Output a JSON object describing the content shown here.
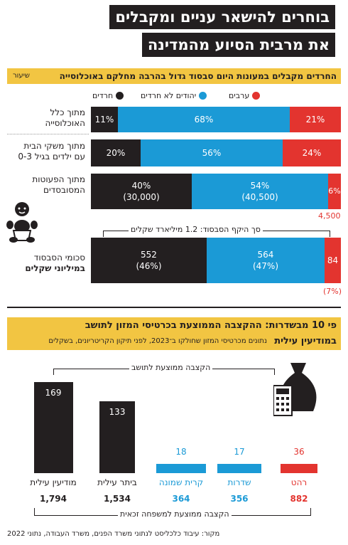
{
  "title": {
    "line1": "בוחרים להישאר עניים ומקבלים",
    "line2": "את מרבית הסיוע מהמדינה"
  },
  "section1": {
    "title": "החרדים מקבלים במעונות היום סבסוד גדול בהרבה מחלקם באוכלוסייה",
    "unit": "שיעור",
    "legend": [
      {
        "label": "ערבים",
        "color": "#e3342f"
      },
      {
        "label": "יהודים לא חרדים",
        "color": "#1b9ad6"
      },
      {
        "label": "חרדים",
        "color": "#231f20"
      }
    ],
    "rows": [
      {
        "label": "מתוך כלל\nהאוכלוסייה",
        "haredi": "11%",
        "jewish": "68%",
        "arab": "21%"
      },
      {
        "label": "מתוך משקי הבית\nעם ילדים בגיל 0-3",
        "haredi": "20%",
        "jewish": "56%",
        "arab": "24%"
      },
      {
        "label": "מתוך הפעוטות\nהמסובסדים",
        "haredi": "40%\n(30,000)",
        "jewish": "54%\n(40,500)",
        "arab": "6%",
        "arab_count": "4,500"
      },
      {
        "label": "סכומי הסבסוד",
        "label_bold": "במיליוני שקלים",
        "haredi": "552\n(46%)",
        "jewish": "564\n(47%)",
        "arab": "84",
        "arab_pct": "(7%)"
      }
    ],
    "total_label": "סך היקף הסבסוד: 1.2 מיליארד שקלים"
  },
  "section2": {
    "title_a": "פי 10 מבשדרות: ההקצבה הממוצעת בכרטיסי המזון לתושב",
    "title_b": "במודיעין עילית",
    "subtitle": "נתונים מכרטיסי המזון שחולקו ב־2023, לפני תיקון הקריטריונים, בשקלים",
    "top_label": "הקצבה ממוצעת לתושב",
    "bottom_label": "הקצבה ממוצעת למשפחה זכאית"
  },
  "chart_data": [
    {
      "type": "bar",
      "orientation": "horizontal-stacked",
      "title": "החרדים מקבלים במעונות היום סבסוד גדול בהרבה מחלקם באוכלוסייה",
      "categories": [
        "מתוך כלל האוכלוסייה",
        "מתוך משקי הבית עם ילדים בגיל 0-3",
        "מתוך הפעוטות המסובסדים",
        "סכומי הסבסוד במיליוני שקלים"
      ],
      "series": [
        {
          "name": "חרדים",
          "values": [
            11,
            20,
            40,
            46
          ],
          "color": "#231f20"
        },
        {
          "name": "יהודים לא חרדים",
          "values": [
            68,
            56,
            54,
            47
          ],
          "color": "#1b9ad6"
        },
        {
          "name": "ערבים",
          "values": [
            21,
            24,
            6,
            7
          ],
          "color": "#e3342f"
        }
      ]
    },
    {
      "type": "bar",
      "title": "פי 10 מבשדרות: ההקצבה הממוצעת בכרטיסי המזון לתושב במודיעין עילית",
      "categories": [
        "מודיעין עילית",
        "ביתר עילית",
        "קרית שמונה",
        "שדרות",
        "רהט"
      ],
      "series": [
        {
          "name": "הקצבה ממוצעת לתושב",
          "values": [
            169,
            133,
            18,
            17,
            36
          ]
        },
        {
          "name": "הקצבה ממוצעת למשפחה זכאית",
          "values": [
            1794,
            1534,
            364,
            356,
            882
          ]
        }
      ],
      "colors": [
        "#231f20",
        "#231f20",
        "#1b9ad6",
        "#1b9ad6",
        "#e3342f"
      ],
      "city_labels": [
        "מודיעין עילית",
        "ביתר עילית",
        "קרית שמונה",
        "שדרות",
        "רהט"
      ],
      "per_resident_labels": [
        "169",
        "133",
        "18",
        "17",
        "36"
      ],
      "per_family_labels": [
        "1,794",
        "1,534",
        "364",
        "356",
        "882"
      ]
    }
  ],
  "source": "מקור: עיבוד כלכליסט לנתוני משרד הפנים, משרד העבודה, נתוני 2022"
}
